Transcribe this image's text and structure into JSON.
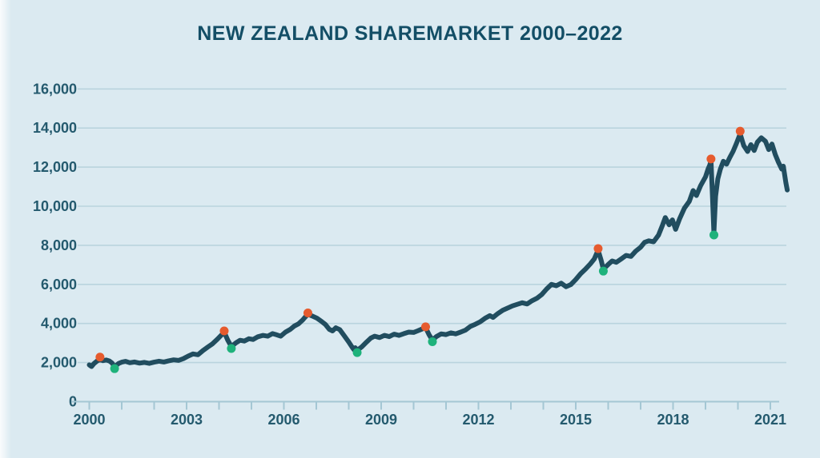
{
  "chart_data": {
    "type": "line",
    "title": "NEW ZEALAND SHAREMARKET 2000–2022",
    "xlabel": "",
    "ylabel": "",
    "xlim": [
      2000,
      2021.7
    ],
    "ylim": [
      0,
      16000
    ],
    "grid": "horizontal",
    "legend": "none",
    "x_ticks": [
      2000,
      2003,
      2006,
      2009,
      2012,
      2015,
      2018,
      2021
    ],
    "x_minor_tick_interval_years": 1,
    "y_ticks": [
      0,
      2000,
      4000,
      6000,
      8000,
      10000,
      12000,
      14000,
      16000
    ],
    "y_tick_labels": [
      "0",
      "2,000",
      "4,000",
      "6,000",
      "8,000",
      "10,000",
      "12,000",
      "14,000",
      "16,000"
    ],
    "series": [
      {
        "points": [
          [
            2000.0,
            1880
          ],
          [
            2000.07,
            1800
          ],
          [
            2000.15,
            1960
          ],
          [
            2000.25,
            2090
          ],
          [
            2000.33,
            2160
          ],
          [
            2000.42,
            2100
          ],
          [
            2000.52,
            2130
          ],
          [
            2000.62,
            2080
          ],
          [
            2000.7,
            1980
          ],
          [
            2000.78,
            1780
          ],
          [
            2000.9,
            1950
          ],
          [
            2001.0,
            2020
          ],
          [
            2001.12,
            2060
          ],
          [
            2001.25,
            1990
          ],
          [
            2001.4,
            2030
          ],
          [
            2001.55,
            1970
          ],
          [
            2001.7,
            2010
          ],
          [
            2001.85,
            1960
          ],
          [
            2002.0,
            2020
          ],
          [
            2002.15,
            2070
          ],
          [
            2002.3,
            2030
          ],
          [
            2002.45,
            2090
          ],
          [
            2002.6,
            2140
          ],
          [
            2002.75,
            2110
          ],
          [
            2002.9,
            2200
          ],
          [
            2003.05,
            2330
          ],
          [
            2003.2,
            2440
          ],
          [
            2003.35,
            2400
          ],
          [
            2003.5,
            2610
          ],
          [
            2003.65,
            2790
          ],
          [
            2003.8,
            2960
          ],
          [
            2003.95,
            3200
          ],
          [
            2004.08,
            3420
          ],
          [
            2004.16,
            3560
          ],
          [
            2004.27,
            3150
          ],
          [
            2004.38,
            2820
          ],
          [
            2004.52,
            3010
          ],
          [
            2004.65,
            3140
          ],
          [
            2004.78,
            3100
          ],
          [
            2004.92,
            3220
          ],
          [
            2005.05,
            3180
          ],
          [
            2005.2,
            3320
          ],
          [
            2005.35,
            3390
          ],
          [
            2005.5,
            3350
          ],
          [
            2005.65,
            3480
          ],
          [
            2005.78,
            3420
          ],
          [
            2005.9,
            3350
          ],
          [
            2006.05,
            3560
          ],
          [
            2006.2,
            3700
          ],
          [
            2006.32,
            3870
          ],
          [
            2006.45,
            3980
          ],
          [
            2006.58,
            4180
          ],
          [
            2006.66,
            4330
          ],
          [
            2006.74,
            4470
          ],
          [
            2006.88,
            4380
          ],
          [
            2007.02,
            4270
          ],
          [
            2007.15,
            4120
          ],
          [
            2007.28,
            3950
          ],
          [
            2007.4,
            3700
          ],
          [
            2007.5,
            3620
          ],
          [
            2007.6,
            3780
          ],
          [
            2007.72,
            3690
          ],
          [
            2007.85,
            3400
          ],
          [
            2008.0,
            3050
          ],
          [
            2008.1,
            2800
          ],
          [
            2008.16,
            2660
          ],
          [
            2008.2,
            2760
          ],
          [
            2008.26,
            2620
          ],
          [
            2008.4,
            2800
          ],
          [
            2008.55,
            3050
          ],
          [
            2008.68,
            3250
          ],
          [
            2008.8,
            3350
          ],
          [
            2008.95,
            3280
          ],
          [
            2009.1,
            3390
          ],
          [
            2009.25,
            3330
          ],
          [
            2009.4,
            3450
          ],
          [
            2009.55,
            3390
          ],
          [
            2009.7,
            3480
          ],
          [
            2009.85,
            3560
          ],
          [
            2010.0,
            3540
          ],
          [
            2010.12,
            3620
          ],
          [
            2010.25,
            3710
          ],
          [
            2010.37,
            3790
          ],
          [
            2010.48,
            3420
          ],
          [
            2010.58,
            3150
          ],
          [
            2010.7,
            3330
          ],
          [
            2010.85,
            3470
          ],
          [
            2011.0,
            3430
          ],
          [
            2011.15,
            3520
          ],
          [
            2011.3,
            3470
          ],
          [
            2011.45,
            3560
          ],
          [
            2011.6,
            3660
          ],
          [
            2011.75,
            3850
          ],
          [
            2011.9,
            3960
          ],
          [
            2012.05,
            4080
          ],
          [
            2012.2,
            4260
          ],
          [
            2012.35,
            4400
          ],
          [
            2012.45,
            4310
          ],
          [
            2012.6,
            4510
          ],
          [
            2012.75,
            4680
          ],
          [
            2012.9,
            4790
          ],
          [
            2013.05,
            4900
          ],
          [
            2013.2,
            4980
          ],
          [
            2013.35,
            5060
          ],
          [
            2013.5,
            5000
          ],
          [
            2013.65,
            5160
          ],
          [
            2013.8,
            5290
          ],
          [
            2013.95,
            5480
          ],
          [
            2014.1,
            5760
          ],
          [
            2014.25,
            6000
          ],
          [
            2014.4,
            5930
          ],
          [
            2014.55,
            6060
          ],
          [
            2014.7,
            5880
          ],
          [
            2014.85,
            5990
          ],
          [
            2015.0,
            6250
          ],
          [
            2015.15,
            6550
          ],
          [
            2015.3,
            6780
          ],
          [
            2015.45,
            7050
          ],
          [
            2015.57,
            7300
          ],
          [
            2015.69,
            7750
          ],
          [
            2015.78,
            7250
          ],
          [
            2015.85,
            6780
          ],
          [
            2016.0,
            7020
          ],
          [
            2016.12,
            7200
          ],
          [
            2016.25,
            7130
          ],
          [
            2016.4,
            7300
          ],
          [
            2016.55,
            7480
          ],
          [
            2016.7,
            7430
          ],
          [
            2016.85,
            7700
          ],
          [
            2017.0,
            7900
          ],
          [
            2017.12,
            8150
          ],
          [
            2017.25,
            8230
          ],
          [
            2017.4,
            8180
          ],
          [
            2017.55,
            8520
          ],
          [
            2017.68,
            9050
          ],
          [
            2017.76,
            9420
          ],
          [
            2017.88,
            9050
          ],
          [
            2017.98,
            9300
          ],
          [
            2018.08,
            8820
          ],
          [
            2018.2,
            9350
          ],
          [
            2018.35,
            9900
          ],
          [
            2018.5,
            10250
          ],
          [
            2018.62,
            10800
          ],
          [
            2018.72,
            10550
          ],
          [
            2018.85,
            11050
          ],
          [
            2019.0,
            11500
          ],
          [
            2019.08,
            11900
          ],
          [
            2019.13,
            12100
          ],
          [
            2019.17,
            12330
          ],
          [
            2019.22,
            10300
          ],
          [
            2019.26,
            8640
          ],
          [
            2019.31,
            10500
          ],
          [
            2019.38,
            11400
          ],
          [
            2019.46,
            11900
          ],
          [
            2019.55,
            12300
          ],
          [
            2019.65,
            12150
          ],
          [
            2019.75,
            12500
          ],
          [
            2019.85,
            12800
          ],
          [
            2019.95,
            13200
          ],
          [
            2020.07,
            13700
          ],
          [
            2020.18,
            13100
          ],
          [
            2020.3,
            12800
          ],
          [
            2020.4,
            13150
          ],
          [
            2020.5,
            12850
          ],
          [
            2020.6,
            13280
          ],
          [
            2020.72,
            13500
          ],
          [
            2020.85,
            13320
          ],
          [
            2020.95,
            12900
          ],
          [
            2021.05,
            13180
          ],
          [
            2021.15,
            12650
          ],
          [
            2021.25,
            12250
          ],
          [
            2021.35,
            11900
          ],
          [
            2021.4,
            12050
          ],
          [
            2021.48,
            11200
          ],
          [
            2021.52,
            10830
          ]
        ]
      }
    ],
    "peak_markers": [
      [
        2000.33,
        2280
      ],
      [
        2004.16,
        3620
      ],
      [
        2006.74,
        4540
      ],
      [
        2010.37,
        3830
      ],
      [
        2015.69,
        7830
      ],
      [
        2019.17,
        12420
      ],
      [
        2020.07,
        13840
      ]
    ],
    "trough_markers": [
      [
        2000.78,
        1690
      ],
      [
        2004.38,
        2720
      ],
      [
        2008.26,
        2510
      ],
      [
        2010.58,
        3070
      ],
      [
        2015.85,
        6680
      ],
      [
        2019.26,
        8530
      ]
    ],
    "colors": {
      "background": "#dbeaf1",
      "title": "#134e66",
      "tick_label": "#245a6e",
      "grid": "#b9d4de",
      "axis": "#a4c7d4",
      "line": "#214d5f",
      "peak_marker": "#e65b2e",
      "trough_marker": "#1eb27b"
    }
  }
}
